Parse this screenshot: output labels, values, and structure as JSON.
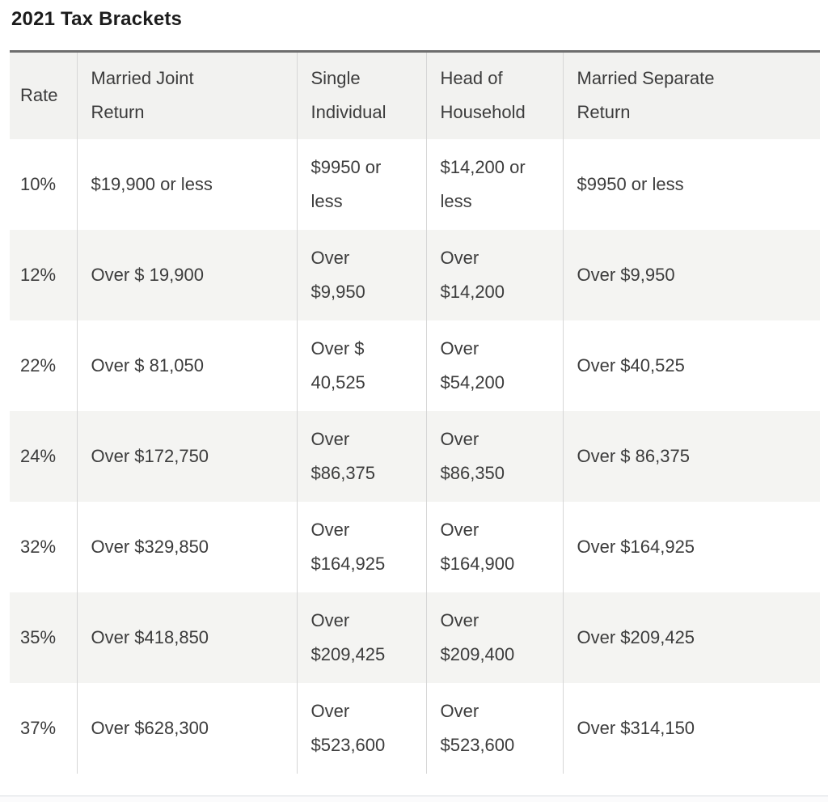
{
  "page": {
    "title": "2021 Tax Brackets"
  },
  "colors": {
    "table_top_border": "#6e6e6e",
    "column_divider": "#d6d6d6",
    "stripe_row_bg": "#f4f4f2",
    "header_row_bg": "#f2f2f0",
    "text": "#3c3c3c",
    "title_text": "#1c1c1c"
  },
  "table": {
    "columns": [
      "Rate",
      "Married Joint\nReturn",
      "Single\nIndividual",
      "Head of\nHousehold",
      "Married Separate\nReturn"
    ],
    "rows": [
      [
        "10%",
        "$19,900 or less",
        "$9950 or\nless",
        "$14,200 or\nless",
        "$9950 or less"
      ],
      [
        "12%",
        "Over $ 19,900",
        "Over\n$9,950",
        "Over\n$14,200",
        "Over $9,950"
      ],
      [
        "22%",
        "Over $ 81,050",
        "Over $\n40,525",
        "Over\n$54,200",
        "Over $40,525"
      ],
      [
        "24%",
        "Over $172,750",
        "Over\n$86,375",
        "Over\n$86,350",
        "Over $ 86,375"
      ],
      [
        "32%",
        "Over $329,850",
        "Over\n$164,925",
        "Over\n$164,900",
        "Over $164,925"
      ],
      [
        "35%",
        "Over $418,850",
        "Over\n$209,425",
        "Over\n$209,400",
        "Over $209,425"
      ],
      [
        "37%",
        "Over $628,300",
        "Over\n$523,600",
        "Over\n$523,600",
        "Over $314,150"
      ]
    ]
  }
}
